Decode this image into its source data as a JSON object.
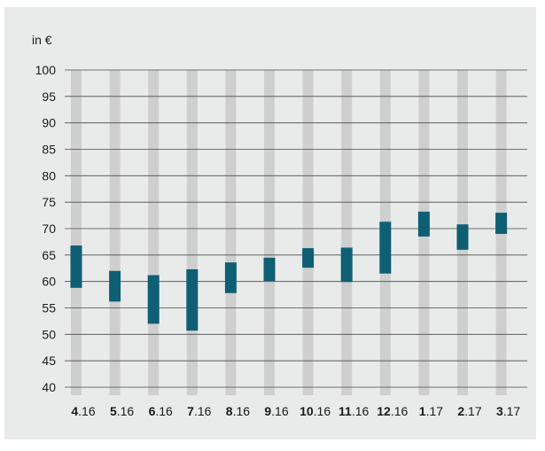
{
  "chart_data": {
    "type": "range-bar",
    "unit_label": "in €",
    "ylim": [
      40,
      100
    ],
    "y_ticks": [
      100,
      95,
      90,
      85,
      80,
      75,
      70,
      65,
      60,
      55,
      50,
      45,
      40
    ],
    "grid": true,
    "categories": [
      {
        "month": "4",
        "year": ".16"
      },
      {
        "month": "5",
        "year": ".16"
      },
      {
        "month": "6",
        "year": ".16"
      },
      {
        "month": "7",
        "year": ".16"
      },
      {
        "month": "8",
        "year": ".16"
      },
      {
        "month": "9",
        "year": ".16"
      },
      {
        "month": "10",
        "year": ".16"
      },
      {
        "month": "11",
        "year": ".16"
      },
      {
        "month": "12",
        "year": ".16"
      },
      {
        "month": "1",
        "year": ".17"
      },
      {
        "month": "2",
        "year": ".17"
      },
      {
        "month": "3",
        "year": ".17"
      }
    ],
    "ranges": [
      {
        "low": 58.8,
        "high": 66.8
      },
      {
        "low": 56.2,
        "high": 62.0
      },
      {
        "low": 52.0,
        "high": 61.2
      },
      {
        "low": 50.7,
        "high": 62.3
      },
      {
        "low": 57.8,
        "high": 63.6
      },
      {
        "low": 60.1,
        "high": 64.5
      },
      {
        "low": 62.6,
        "high": 66.3
      },
      {
        "low": 59.9,
        "high": 66.4
      },
      {
        "low": 61.5,
        "high": 71.3
      },
      {
        "low": 68.5,
        "high": 73.2
      },
      {
        "low": 66.0,
        "high": 70.8
      },
      {
        "low": 69.0,
        "high": 73.0
      }
    ],
    "colors": {
      "range_bar": "#0e5f73",
      "background_stripe": "#cfcfcf",
      "grid_line": "#4a4a4a",
      "panel": "#e9ebea"
    }
  }
}
